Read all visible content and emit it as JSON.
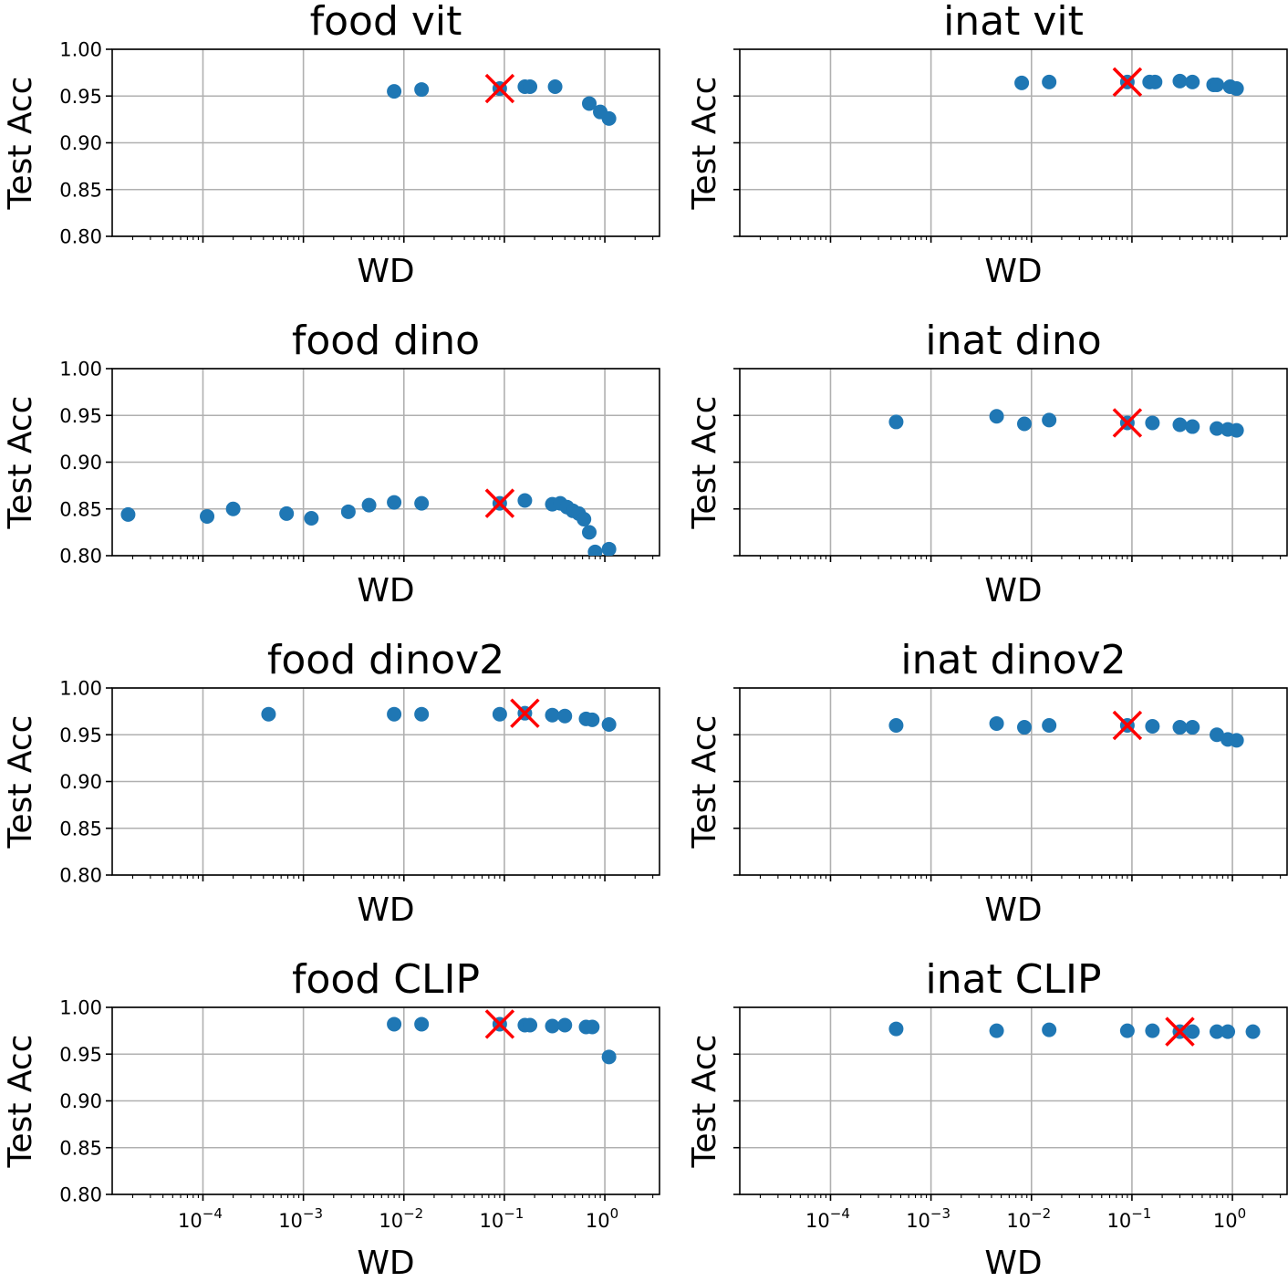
{
  "figure": {
    "marker_color": "#1f77b4",
    "best_marker_color": "#ff0000",
    "grid_color": "#b0b0b0"
  },
  "x_tick_labels": [
    {
      "base": "10",
      "exp": "−4",
      "value": 0.0001
    },
    {
      "base": "10",
      "exp": "−3",
      "value": 0.001
    },
    {
      "base": "10",
      "exp": "−2",
      "value": 0.01
    },
    {
      "base": "10",
      "exp": "−1",
      "value": 0.1
    },
    {
      "base": "10",
      "exp": "0",
      "value": 1
    }
  ],
  "y_tick_labels": [
    "0.80",
    "0.85",
    "0.90",
    "0.95",
    "1.00"
  ],
  "chart_data": [
    {
      "type": "scatter",
      "title": "food vit",
      "xlabel": "WD",
      "ylabel": "Test Acc",
      "xscale": "log",
      "xlim": [
        1.25e-05,
        3.5
      ],
      "ylim": [
        0.8,
        1.0
      ],
      "grid": true,
      "show_y_tick_labels": true,
      "show_x_tick_labels": false,
      "points": [
        [
          0.008,
          0.955
        ],
        [
          0.015,
          0.957
        ],
        [
          0.09,
          0.958
        ],
        [
          0.16,
          0.96
        ],
        [
          0.18,
          0.96
        ],
        [
          0.32,
          0.96
        ],
        [
          0.7,
          0.942
        ],
        [
          0.9,
          0.933
        ],
        [
          1.1,
          0.926
        ]
      ],
      "best": [
        0.09,
        0.958
      ]
    },
    {
      "type": "scatter",
      "title": "inat vit",
      "xlabel": "WD",
      "ylabel": "Test Acc",
      "xscale": "log",
      "xlim": [
        1.25e-05,
        3.5
      ],
      "ylim": [
        0.8,
        1.0
      ],
      "grid": true,
      "show_y_tick_labels": false,
      "show_x_tick_labels": false,
      "points": [
        [
          0.008,
          0.964
        ],
        [
          0.015,
          0.965
        ],
        [
          0.09,
          0.965
        ],
        [
          0.15,
          0.965
        ],
        [
          0.17,
          0.965
        ],
        [
          0.3,
          0.966
        ],
        [
          0.4,
          0.965
        ],
        [
          0.65,
          0.962
        ],
        [
          0.7,
          0.962
        ],
        [
          0.95,
          0.96
        ],
        [
          1.1,
          0.958
        ]
      ],
      "best": [
        0.09,
        0.965
      ]
    },
    {
      "type": "scatter",
      "title": "food dino",
      "xlabel": "WD",
      "ylabel": "Test Acc",
      "xscale": "log",
      "xlim": [
        1.25e-05,
        3.5
      ],
      "ylim": [
        0.8,
        1.0
      ],
      "grid": true,
      "show_y_tick_labels": true,
      "show_x_tick_labels": false,
      "points": [
        [
          1.8e-05,
          0.844
        ],
        [
          0.00011,
          0.842
        ],
        [
          0.0002,
          0.85
        ],
        [
          0.00068,
          0.845
        ],
        [
          0.0012,
          0.84
        ],
        [
          0.0028,
          0.847
        ],
        [
          0.0045,
          0.854
        ],
        [
          0.008,
          0.857
        ],
        [
          0.015,
          0.856
        ],
        [
          0.09,
          0.856
        ],
        [
          0.16,
          0.859
        ],
        [
          0.3,
          0.855
        ],
        [
          0.36,
          0.856
        ],
        [
          0.42,
          0.852
        ],
        [
          0.48,
          0.848
        ],
        [
          0.55,
          0.845
        ],
        [
          0.62,
          0.839
        ],
        [
          0.7,
          0.825
        ],
        [
          0.8,
          0.804
        ],
        [
          1.1,
          0.807
        ]
      ],
      "best": [
        0.09,
        0.856
      ]
    },
    {
      "type": "scatter",
      "title": "inat dino",
      "xlabel": "WD",
      "ylabel": "Test Acc",
      "xscale": "log",
      "xlim": [
        1.25e-05,
        3.5
      ],
      "ylim": [
        0.8,
        1.0
      ],
      "grid": true,
      "show_y_tick_labels": false,
      "show_x_tick_labels": false,
      "points": [
        [
          0.00045,
          0.943
        ],
        [
          0.0045,
          0.949
        ],
        [
          0.0085,
          0.941
        ],
        [
          0.015,
          0.945
        ],
        [
          0.09,
          0.942
        ],
        [
          0.16,
          0.942
        ],
        [
          0.3,
          0.94
        ],
        [
          0.4,
          0.938
        ],
        [
          0.7,
          0.936
        ],
        [
          0.9,
          0.935
        ],
        [
          1.1,
          0.934
        ]
      ],
      "best": [
        0.09,
        0.942
      ]
    },
    {
      "type": "scatter",
      "title": "food dinov2",
      "xlabel": "WD",
      "ylabel": "Test Acc",
      "xscale": "log",
      "xlim": [
        1.25e-05,
        3.5
      ],
      "ylim": [
        0.8,
        1.0
      ],
      "grid": true,
      "show_y_tick_labels": true,
      "show_x_tick_labels": false,
      "points": [
        [
          0.00045,
          0.972
        ],
        [
          0.008,
          0.972
        ],
        [
          0.015,
          0.972
        ],
        [
          0.09,
          0.972
        ],
        [
          0.16,
          0.973
        ],
        [
          0.3,
          0.971
        ],
        [
          0.4,
          0.97
        ],
        [
          0.65,
          0.967
        ],
        [
          0.75,
          0.966
        ],
        [
          1.1,
          0.961
        ]
      ],
      "best": [
        0.16,
        0.973
      ]
    },
    {
      "type": "scatter",
      "title": "inat dinov2",
      "xlabel": "WD",
      "ylabel": "Test Acc",
      "xscale": "log",
      "xlim": [
        1.25e-05,
        3.5
      ],
      "ylim": [
        0.8,
        1.0
      ],
      "grid": true,
      "show_y_tick_labels": false,
      "show_x_tick_labels": false,
      "points": [
        [
          0.00045,
          0.96
        ],
        [
          0.0045,
          0.962
        ],
        [
          0.0085,
          0.958
        ],
        [
          0.015,
          0.96
        ],
        [
          0.09,
          0.96
        ],
        [
          0.16,
          0.959
        ],
        [
          0.3,
          0.958
        ],
        [
          0.4,
          0.958
        ],
        [
          0.7,
          0.95
        ],
        [
          0.9,
          0.945
        ],
        [
          1.1,
          0.944
        ]
      ],
      "best": [
        0.09,
        0.96
      ]
    },
    {
      "type": "scatter",
      "title": "food CLIP",
      "xlabel": "WD",
      "ylabel": "Test Acc",
      "xscale": "log",
      "xlim": [
        1.25e-05,
        3.5
      ],
      "ylim": [
        0.8,
        1.0
      ],
      "grid": true,
      "show_y_tick_labels": true,
      "show_x_tick_labels": true,
      "points": [
        [
          0.008,
          0.982
        ],
        [
          0.015,
          0.982
        ],
        [
          0.09,
          0.982
        ],
        [
          0.16,
          0.981
        ],
        [
          0.18,
          0.981
        ],
        [
          0.3,
          0.98
        ],
        [
          0.4,
          0.981
        ],
        [
          0.65,
          0.979
        ],
        [
          0.75,
          0.979
        ],
        [
          1.1,
          0.947
        ]
      ],
      "best": [
        0.09,
        0.982
      ]
    },
    {
      "type": "scatter",
      "title": "inat CLIP",
      "xlabel": "WD",
      "ylabel": "Test Acc",
      "xscale": "log",
      "xlim": [
        1.25e-05,
        3.5
      ],
      "ylim": [
        0.8,
        1.0
      ],
      "grid": true,
      "show_y_tick_labels": false,
      "show_x_tick_labels": true,
      "points": [
        [
          0.00045,
          0.977
        ],
        [
          0.0045,
          0.975
        ],
        [
          0.015,
          0.976
        ],
        [
          0.09,
          0.975
        ],
        [
          0.16,
          0.975
        ],
        [
          0.3,
          0.974
        ],
        [
          0.4,
          0.974
        ],
        [
          0.7,
          0.974
        ],
        [
          0.9,
          0.974
        ],
        [
          1.6,
          0.974
        ]
      ],
      "best": [
        0.3,
        0.974
      ]
    }
  ]
}
